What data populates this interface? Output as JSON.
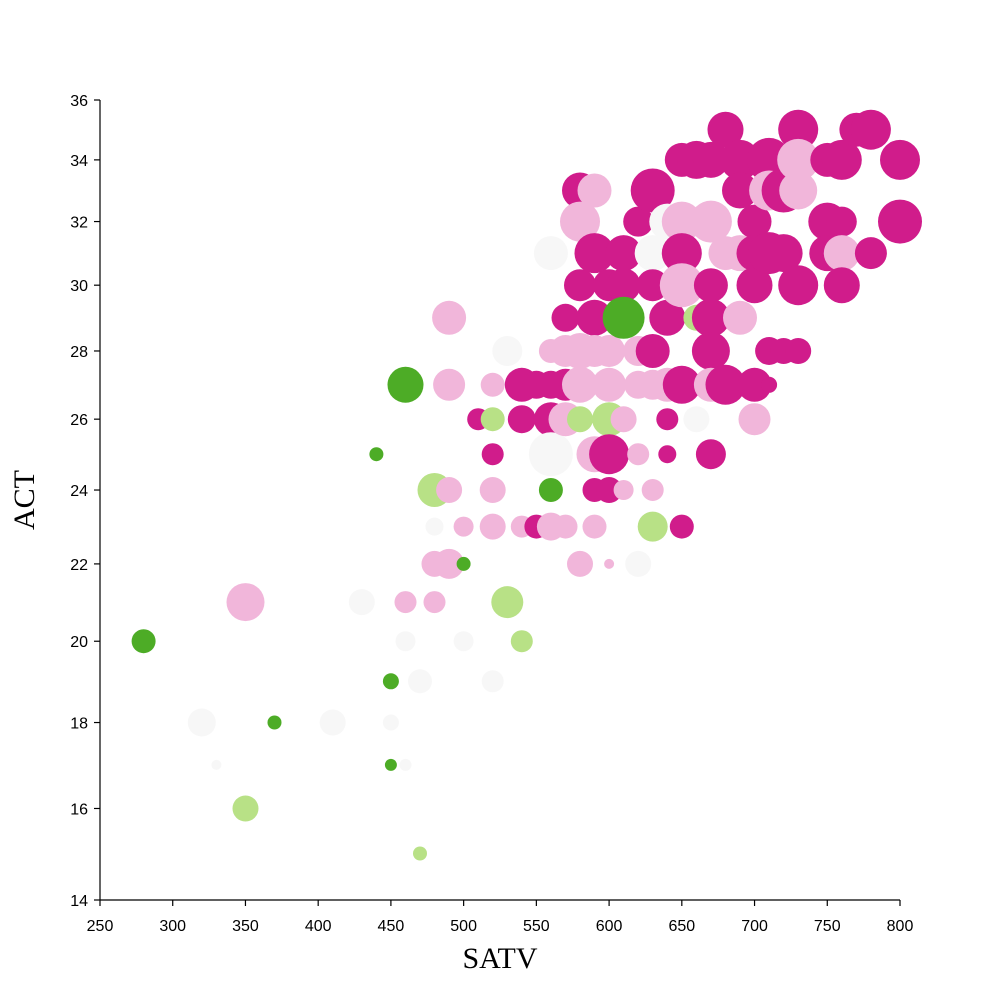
{
  "chart_data": {
    "type": "scatter",
    "xlabel": "SATV",
    "ylabel": "ACT",
    "xlim": [
      250,
      800
    ],
    "ylim": [
      14,
      36
    ],
    "y_scale": "sqrt",
    "grid": false,
    "legend": "none",
    "xticks": [
      250,
      300,
      350,
      400,
      450,
      500,
      550,
      600,
      650,
      700,
      750,
      800
    ],
    "yticks": [
      14,
      16,
      18,
      20,
      22,
      24,
      26,
      28,
      30,
      32,
      34,
      36
    ],
    "colors": {
      "dark-magenta": "#d01c8b",
      "light-pink": "#f1b6da",
      "light-gray": "#f7f7f7",
      "light-green": "#b8e186",
      "dark-green": "#4dac26"
    },
    "points": [
      {
        "x": 280,
        "y": 20,
        "r": 12,
        "c": "dark-green"
      },
      {
        "x": 320,
        "y": 18,
        "r": 14,
        "c": "light-gray"
      },
      {
        "x": 330,
        "y": 17,
        "r": 5,
        "c": "light-gray"
      },
      {
        "x": 350,
        "y": 21,
        "r": 19,
        "c": "light-pink"
      },
      {
        "x": 350,
        "y": 16,
        "r": 13,
        "c": "light-green"
      },
      {
        "x": 370,
        "y": 18,
        "r": 7,
        "c": "dark-green"
      },
      {
        "x": 410,
        "y": 18,
        "r": 13,
        "c": "light-gray"
      },
      {
        "x": 430,
        "y": 21,
        "r": 13,
        "c": "light-gray"
      },
      {
        "x": 440,
        "y": 25,
        "r": 7,
        "c": "dark-green"
      },
      {
        "x": 450,
        "y": 19,
        "r": 8,
        "c": "dark-green"
      },
      {
        "x": 450,
        "y": 18,
        "r": 8,
        "c": "light-gray"
      },
      {
        "x": 450,
        "y": 17,
        "r": 6,
        "c": "dark-green"
      },
      {
        "x": 460,
        "y": 27,
        "r": 18,
        "c": "dark-green"
      },
      {
        "x": 460,
        "y": 21,
        "r": 11,
        "c": "light-pink"
      },
      {
        "x": 460,
        "y": 20,
        "r": 10,
        "c": "light-gray"
      },
      {
        "x": 460,
        "y": 17,
        "r": 6,
        "c": "light-gray"
      },
      {
        "x": 470,
        "y": 19,
        "r": 12,
        "c": "light-gray"
      },
      {
        "x": 470,
        "y": 15,
        "r": 7,
        "c": "light-green"
      },
      {
        "x": 480,
        "y": 24,
        "r": 17,
        "c": "light-green"
      },
      {
        "x": 480,
        "y": 23,
        "r": 9,
        "c": "light-gray"
      },
      {
        "x": 480,
        "y": 22,
        "r": 13,
        "c": "light-pink"
      },
      {
        "x": 480,
        "y": 21,
        "r": 11,
        "c": "light-pink"
      },
      {
        "x": 490,
        "y": 29,
        "r": 17,
        "c": "light-pink"
      },
      {
        "x": 490,
        "y": 27,
        "r": 16,
        "c": "light-pink"
      },
      {
        "x": 490,
        "y": 24,
        "r": 13,
        "c": "light-pink"
      },
      {
        "x": 490,
        "y": 22,
        "r": 15,
        "c": "light-pink"
      },
      {
        "x": 500,
        "y": 22,
        "r": 7,
        "c": "dark-green"
      },
      {
        "x": 500,
        "y": 20,
        "r": 10,
        "c": "light-gray"
      },
      {
        "x": 500,
        "y": 23,
        "r": 10,
        "c": "light-pink"
      },
      {
        "x": 510,
        "y": 26,
        "r": 11,
        "c": "dark-magenta"
      },
      {
        "x": 520,
        "y": 27,
        "r": 12,
        "c": "light-pink"
      },
      {
        "x": 520,
        "y": 26,
        "r": 12,
        "c": "light-green"
      },
      {
        "x": 520,
        "y": 25,
        "r": 11,
        "c": "dark-magenta"
      },
      {
        "x": 520,
        "y": 24,
        "r": 13,
        "c": "light-pink"
      },
      {
        "x": 520,
        "y": 23,
        "r": 13,
        "c": "light-pink"
      },
      {
        "x": 520,
        "y": 19,
        "r": 11,
        "c": "light-gray"
      },
      {
        "x": 530,
        "y": 28,
        "r": 15,
        "c": "light-gray"
      },
      {
        "x": 530,
        "y": 21,
        "r": 16,
        "c": "light-green"
      },
      {
        "x": 540,
        "y": 27,
        "r": 17,
        "c": "dark-magenta"
      },
      {
        "x": 540,
        "y": 26,
        "r": 14,
        "c": "dark-magenta"
      },
      {
        "x": 540,
        "y": 23,
        "r": 11,
        "c": "light-pink"
      },
      {
        "x": 540,
        "y": 20,
        "r": 11,
        "c": "light-green"
      },
      {
        "x": 550,
        "y": 27,
        "r": 14,
        "c": "dark-magenta"
      },
      {
        "x": 550,
        "y": 23,
        "r": 12,
        "c": "dark-magenta"
      },
      {
        "x": 560,
        "y": 31,
        "r": 17,
        "c": "light-gray"
      },
      {
        "x": 560,
        "y": 28,
        "r": 12,
        "c": "light-pink"
      },
      {
        "x": 560,
        "y": 27,
        "r": 14,
        "c": "dark-magenta"
      },
      {
        "x": 560,
        "y": 26,
        "r": 17,
        "c": "dark-magenta"
      },
      {
        "x": 560,
        "y": 25,
        "r": 22,
        "c": "light-gray"
      },
      {
        "x": 560,
        "y": 24,
        "r": 12,
        "c": "dark-green"
      },
      {
        "x": 560,
        "y": 23,
        "r": 14,
        "c": "light-pink"
      },
      {
        "x": 570,
        "y": 29,
        "r": 14,
        "c": "dark-magenta"
      },
      {
        "x": 570,
        "y": 28,
        "r": 16,
        "c": "light-pink"
      },
      {
        "x": 570,
        "y": 27,
        "r": 16,
        "c": "dark-magenta"
      },
      {
        "x": 570,
        "y": 26,
        "r": 17,
        "c": "light-pink"
      },
      {
        "x": 570,
        "y": 23,
        "r": 12,
        "c": "light-pink"
      },
      {
        "x": 580,
        "y": 33,
        "r": 18,
        "c": "dark-magenta"
      },
      {
        "x": 580,
        "y": 32,
        "r": 20,
        "c": "light-pink"
      },
      {
        "x": 580,
        "y": 30,
        "r": 16,
        "c": "dark-magenta"
      },
      {
        "x": 580,
        "y": 28,
        "r": 18,
        "c": "light-pink"
      },
      {
        "x": 580,
        "y": 27,
        "r": 18,
        "c": "light-pink"
      },
      {
        "x": 580,
        "y": 26,
        "r": 13,
        "c": "light-green"
      },
      {
        "x": 580,
        "y": 22,
        "r": 13,
        "c": "light-pink"
      },
      {
        "x": 590,
        "y": 33,
        "r": 17,
        "c": "light-pink"
      },
      {
        "x": 590,
        "y": 31,
        "r": 20,
        "c": "dark-magenta"
      },
      {
        "x": 590,
        "y": 29,
        "r": 18,
        "c": "dark-magenta"
      },
      {
        "x": 590,
        "y": 28,
        "r": 16,
        "c": "light-pink"
      },
      {
        "x": 590,
        "y": 25,
        "r": 18,
        "c": "light-pink"
      },
      {
        "x": 590,
        "y": 24,
        "r": 12,
        "c": "dark-magenta"
      },
      {
        "x": 590,
        "y": 23,
        "r": 12,
        "c": "light-pink"
      },
      {
        "x": 600,
        "y": 30,
        "r": 16,
        "c": "dark-magenta"
      },
      {
        "x": 600,
        "y": 28,
        "r": 16,
        "c": "light-pink"
      },
      {
        "x": 600,
        "y": 27,
        "r": 17,
        "c": "light-pink"
      },
      {
        "x": 600,
        "y": 26,
        "r": 17,
        "c": "light-green"
      },
      {
        "x": 600,
        "y": 25,
        "r": 20,
        "c": "dark-magenta"
      },
      {
        "x": 600,
        "y": 24,
        "r": 13,
        "c": "dark-magenta"
      },
      {
        "x": 600,
        "y": 22,
        "r": 5,
        "c": "light-pink"
      },
      {
        "x": 610,
        "y": 31,
        "r": 18,
        "c": "dark-magenta"
      },
      {
        "x": 610,
        "y": 30,
        "r": 17,
        "c": "dark-magenta"
      },
      {
        "x": 610,
        "y": 29,
        "r": 21,
        "c": "dark-green"
      },
      {
        "x": 610,
        "y": 26,
        "r": 13,
        "c": "light-pink"
      },
      {
        "x": 610,
        "y": 24,
        "r": 10,
        "c": "light-pink"
      },
      {
        "x": 620,
        "y": 32,
        "r": 15,
        "c": "dark-magenta"
      },
      {
        "x": 620,
        "y": 28,
        "r": 15,
        "c": "light-pink"
      },
      {
        "x": 620,
        "y": 27,
        "r": 14,
        "c": "light-pink"
      },
      {
        "x": 620,
        "y": 25,
        "r": 11,
        "c": "light-pink"
      },
      {
        "x": 620,
        "y": 22,
        "r": 13,
        "c": "light-gray"
      },
      {
        "x": 630,
        "y": 33,
        "r": 22,
        "c": "dark-magenta"
      },
      {
        "x": 630,
        "y": 31,
        "r": 18,
        "c": "light-gray"
      },
      {
        "x": 630,
        "y": 30,
        "r": 16,
        "c": "dark-magenta"
      },
      {
        "x": 630,
        "y": 28,
        "r": 17,
        "c": "dark-magenta"
      },
      {
        "x": 630,
        "y": 27,
        "r": 15,
        "c": "light-pink"
      },
      {
        "x": 630,
        "y": 24,
        "r": 11,
        "c": "light-pink"
      },
      {
        "x": 630,
        "y": 23,
        "r": 15,
        "c": "light-green"
      },
      {
        "x": 640,
        "y": 32,
        "r": 18,
        "c": "light-gray"
      },
      {
        "x": 640,
        "y": 29,
        "r": 18,
        "c": "dark-magenta"
      },
      {
        "x": 640,
        "y": 27,
        "r": 17,
        "c": "light-pink"
      },
      {
        "x": 640,
        "y": 26,
        "r": 11,
        "c": "dark-magenta"
      },
      {
        "x": 640,
        "y": 25,
        "r": 9,
        "c": "dark-magenta"
      },
      {
        "x": 650,
        "y": 34,
        "r": 17,
        "c": "dark-magenta"
      },
      {
        "x": 650,
        "y": 32,
        "r": 20,
        "c": "light-pink"
      },
      {
        "x": 650,
        "y": 31,
        "r": 20,
        "c": "dark-magenta"
      },
      {
        "x": 650,
        "y": 30,
        "r": 22,
        "c": "light-pink"
      },
      {
        "x": 650,
        "y": 27,
        "r": 19,
        "c": "dark-magenta"
      },
      {
        "x": 650,
        "y": 23,
        "r": 12,
        "c": "dark-magenta"
      },
      {
        "x": 660,
        "y": 34,
        "r": 19,
        "c": "dark-magenta"
      },
      {
        "x": 660,
        "y": 29,
        "r": 13,
        "c": "light-green"
      },
      {
        "x": 660,
        "y": 26,
        "r": 13,
        "c": "light-gray"
      },
      {
        "x": 670,
        "y": 34,
        "r": 18,
        "c": "dark-magenta"
      },
      {
        "x": 670,
        "y": 32,
        "r": 21,
        "c": "light-pink"
      },
      {
        "x": 670,
        "y": 30,
        "r": 17,
        "c": "dark-magenta"
      },
      {
        "x": 670,
        "y": 29,
        "r": 19,
        "c": "dark-magenta"
      },
      {
        "x": 670,
        "y": 28,
        "r": 19,
        "c": "dark-magenta"
      },
      {
        "x": 670,
        "y": 27,
        "r": 17,
        "c": "light-pink"
      },
      {
        "x": 670,
        "y": 25,
        "r": 15,
        "c": "dark-magenta"
      },
      {
        "x": 680,
        "y": 35,
        "r": 18,
        "c": "dark-magenta"
      },
      {
        "x": 680,
        "y": 31,
        "r": 17,
        "c": "light-pink"
      },
      {
        "x": 680,
        "y": 27,
        "r": 20,
        "c": "dark-magenta"
      },
      {
        "x": 690,
        "y": 34,
        "r": 20,
        "c": "dark-magenta"
      },
      {
        "x": 690,
        "y": 33,
        "r": 18,
        "c": "dark-magenta"
      },
      {
        "x": 690,
        "y": 31,
        "r": 18,
        "c": "light-pink"
      },
      {
        "x": 690,
        "y": 29,
        "r": 17,
        "c": "light-pink"
      },
      {
        "x": 700,
        "y": 32,
        "r": 17,
        "c": "dark-magenta"
      },
      {
        "x": 700,
        "y": 31,
        "r": 18,
        "c": "dark-magenta"
      },
      {
        "x": 700,
        "y": 30,
        "r": 18,
        "c": "dark-magenta"
      },
      {
        "x": 700,
        "y": 27,
        "r": 17,
        "c": "dark-magenta"
      },
      {
        "x": 700,
        "y": 26,
        "r": 16,
        "c": "light-pink"
      },
      {
        "x": 710,
        "y": 34,
        "r": 22,
        "c": "dark-magenta"
      },
      {
        "x": 710,
        "y": 33,
        "r": 20,
        "c": "light-pink"
      },
      {
        "x": 710,
        "y": 31,
        "r": 21,
        "c": "dark-magenta"
      },
      {
        "x": 710,
        "y": 28,
        "r": 14,
        "c": "dark-magenta"
      },
      {
        "x": 710,
        "y": 27,
        "r": 8,
        "c": "dark-magenta"
      },
      {
        "x": 720,
        "y": 33,
        "r": 22,
        "c": "dark-magenta"
      },
      {
        "x": 720,
        "y": 31,
        "r": 19,
        "c": "dark-magenta"
      },
      {
        "x": 720,
        "y": 28,
        "r": 13,
        "c": "dark-magenta"
      },
      {
        "x": 730,
        "y": 35,
        "r": 20,
        "c": "dark-magenta"
      },
      {
        "x": 730,
        "y": 34,
        "r": 21,
        "c": "light-pink"
      },
      {
        "x": 730,
        "y": 33,
        "r": 19,
        "c": "light-pink"
      },
      {
        "x": 730,
        "y": 30,
        "r": 20,
        "c": "dark-magenta"
      },
      {
        "x": 730,
        "y": 28,
        "r": 13,
        "c": "dark-magenta"
      },
      {
        "x": 750,
        "y": 34,
        "r": 17,
        "c": "dark-magenta"
      },
      {
        "x": 750,
        "y": 32,
        "r": 19,
        "c": "dark-magenta"
      },
      {
        "x": 750,
        "y": 31,
        "r": 18,
        "c": "dark-magenta"
      },
      {
        "x": 760,
        "y": 34,
        "r": 20,
        "c": "dark-magenta"
      },
      {
        "x": 760,
        "y": 32,
        "r": 15,
        "c": "dark-magenta"
      },
      {
        "x": 760,
        "y": 31,
        "r": 18,
        "c": "light-pink"
      },
      {
        "x": 760,
        "y": 30,
        "r": 18,
        "c": "dark-magenta"
      },
      {
        "x": 770,
        "y": 35,
        "r": 17,
        "c": "dark-magenta"
      },
      {
        "x": 780,
        "y": 35,
        "r": 20,
        "c": "dark-magenta"
      },
      {
        "x": 780,
        "y": 31,
        "r": 16,
        "c": "dark-magenta"
      },
      {
        "x": 800,
        "y": 34,
        "r": 20,
        "c": "dark-magenta"
      },
      {
        "x": 800,
        "y": 32,
        "r": 22,
        "c": "dark-magenta"
      }
    ]
  }
}
